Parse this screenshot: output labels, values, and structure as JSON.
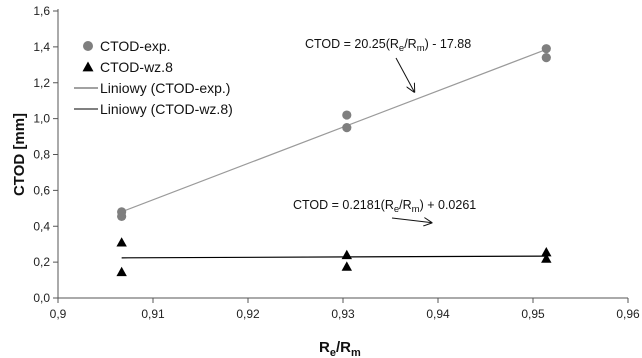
{
  "chart_data": {
    "type": "scatter",
    "xlabel": {
      "main": "R",
      "sub1": "e",
      "sep": "/R",
      "sub2": "m"
    },
    "ylabel": "CTOD [mm]",
    "xlim": [
      0.9,
      0.96
    ],
    "ylim": [
      0.0,
      1.6
    ],
    "x_ticks": [
      "0,9",
      "0,91",
      "0,92",
      "0,93",
      "0,94",
      "0,95",
      "0,96"
    ],
    "y_ticks": [
      "0,0",
      "0,2",
      "0,4",
      "0,6",
      "0,8",
      "1,0",
      "1,2",
      "1,4",
      "1,6"
    ],
    "grid": false,
    "legend_position": "top-left",
    "series": [
      {
        "name": "CTOD-exp.",
        "marker": "circle",
        "color": "#7f7f7f",
        "points": [
          {
            "x": 0.9067,
            "y": 0.48
          },
          {
            "x": 0.9067,
            "y": 0.455
          },
          {
            "x": 0.9304,
            "y": 1.02
          },
          {
            "x": 0.9304,
            "y": 0.95
          },
          {
            "x": 0.9514,
            "y": 1.39
          },
          {
            "x": 0.9514,
            "y": 1.34
          }
        ]
      },
      {
        "name": "CTOD-wz.8",
        "marker": "triangle",
        "color": "#000000",
        "points": [
          {
            "x": 0.9067,
            "y": 0.31
          },
          {
            "x": 0.9067,
            "y": 0.145
          },
          {
            "x": 0.9304,
            "y": 0.24
          },
          {
            "x": 0.9304,
            "y": 0.175
          },
          {
            "x": 0.9514,
            "y": 0.255
          },
          {
            "x": 0.9514,
            "y": 0.22
          }
        ]
      },
      {
        "name": "Liniowy (CTOD-exp.)",
        "type": "line",
        "color": "#9a9a9a",
        "x": [
          0.9067,
          0.9514
        ],
        "slope": 20.25,
        "intercept": -17.88
      },
      {
        "name": "Liniowy (CTOD-wz.8)",
        "type": "line",
        "color": "#000000",
        "x": [
          0.9067,
          0.9514
        ],
        "slope": 0.2181,
        "intercept": 0.0261
      }
    ],
    "annotations": [
      {
        "id": "exp",
        "parts": [
          {
            "text": "CTOD = 20.25(R",
            "sub": false
          },
          {
            "text": "e",
            "sub": true
          },
          {
            "text": "/R",
            "sub": false
          },
          {
            "text": "m",
            "sub": true
          },
          {
            "text": ")  - 17.88",
            "sub": false
          }
        ],
        "arrow_to": {
          "x": 0.9375,
          "y": 1.15
        }
      },
      {
        "id": "wz8",
        "parts": [
          {
            "text": "CTOD = 0.2181(R",
            "sub": false
          },
          {
            "text": "e",
            "sub": true
          },
          {
            "text": "/R",
            "sub": false
          },
          {
            "text": "m",
            "sub": true
          },
          {
            "text": ")  + 0.0261",
            "sub": false
          }
        ],
        "arrow_to": {
          "x": 0.9393,
          "y": 0.42
        }
      }
    ]
  }
}
